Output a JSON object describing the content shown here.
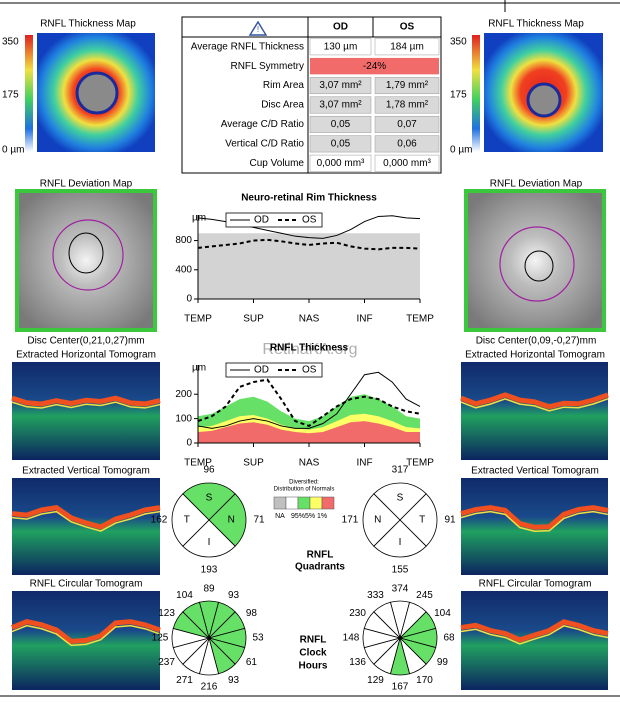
{
  "thickness_maps": [
    {
      "title": "RNFL Thickness Map",
      "scale": [
        "350",
        "175",
        "0 µm"
      ]
    },
    {
      "title": "RNFL Thickness Map",
      "scale": [
        "350",
        "175",
        "0 µm"
      ]
    }
  ],
  "table": {
    "header": [
      "OD",
      "OS"
    ],
    "rows": [
      {
        "label": "Average RNFL Thickness",
        "od": "130 µm",
        "os": "184 µm",
        "color": "#ffffff"
      },
      {
        "label": "RNFL Symmetry",
        "value": "-24%",
        "color": "#f26b6b"
      },
      {
        "label": "Rim Area",
        "od": "3,07 mm²",
        "os": "1,79 mm²",
        "color": "#d9d9d9"
      },
      {
        "label": "Disc Area",
        "od": "3,07 mm²",
        "os": "1,78 mm²",
        "color": "#d9d9d9"
      },
      {
        "label": "Average C/D Ratio",
        "od": "0,05",
        "os": "0,07",
        "color": "#d9d9d9"
      },
      {
        "label": "Vertical C/D Ratio",
        "od": "0,05",
        "os": "0,06",
        "color": "#d9d9d9"
      },
      {
        "label": "Cup Volume",
        "od": "0,000 mm³",
        "os": "0,000 mm³",
        "color": "#ffffff"
      }
    ]
  },
  "deviation_maps": [
    {
      "title": "RNFL Deviation Map",
      "caption": "Disc Center(0,21,0,27)mm"
    },
    {
      "title": "RNFL Deviation Map",
      "caption": "Disc Center(0,09,-0,27)mm"
    }
  ],
  "tomograms": {
    "horizontal": [
      "Extracted Horizontal Tomogram",
      "Extracted Horizontal Tomogram"
    ],
    "vertical": [
      "Extracted Vertical Tomogram",
      "Extracted Vertical Tomogram"
    ],
    "circular": [
      "RNFL Circular Tomogram",
      "RNFL Circular Tomogram"
    ]
  },
  "watermark": "RetinaKA.org",
  "chart_data": [
    {
      "type": "line",
      "title": "Neuro-retinal Rim Thickness",
      "y_label": "µm",
      "x": [
        0,
        1,
        2,
        3,
        4,
        5,
        6,
        7,
        8,
        9,
        10,
        11,
        12,
        13,
        14,
        15,
        16
      ],
      "xlim": [
        0,
        16
      ],
      "xticks": [
        {
          "value": 0,
          "label": "TEMP"
        },
        {
          "value": 4,
          "label": "SUP"
        },
        {
          "value": 8,
          "label": "NAS"
        },
        {
          "value": 12,
          "label": "INF"
        },
        {
          "value": 16,
          "label": "TEMP"
        }
      ],
      "ylim": [
        0,
        1150
      ],
      "yticks": [
        0,
        400,
        800
      ],
      "shaded_range": [
        0,
        900
      ],
      "shaded_color": "#d3d3d3",
      "series": [
        {
          "name": "OD",
          "color": "#000000",
          "dashed": false,
          "values": [
            1110,
            1090,
            1060,
            1020,
            980,
            940,
            900,
            860,
            840,
            830,
            870,
            950,
            1060,
            1130,
            1140,
            1110,
            1100
          ]
        },
        {
          "name": "OS",
          "color": "#000000",
          "dashed": true,
          "values": [
            700,
            720,
            740,
            760,
            800,
            810,
            790,
            760,
            740,
            760,
            770,
            720,
            690,
            680,
            700,
            700,
            690
          ]
        }
      ]
    },
    {
      "type": "line",
      "title": "RNFL Thickness",
      "y_label": "µm",
      "x": [
        0,
        1,
        2,
        3,
        4,
        5,
        6,
        7,
        8,
        9,
        10,
        11,
        12,
        13,
        14,
        15,
        16
      ],
      "xlim": [
        0,
        16
      ],
      "xticks": [
        {
          "value": 0,
          "label": "TEMP"
        },
        {
          "value": 4,
          "label": "SUP"
        },
        {
          "value": 8,
          "label": "NAS"
        },
        {
          "value": 12,
          "label": "INF"
        },
        {
          "value": 16,
          "label": "TEMP"
        }
      ],
      "ylim": [
        0,
        320
      ],
      "yticks": [
        0,
        100,
        200
      ],
      "bands": [
        {
          "color": "#66e066",
          "values": [
            110,
            120,
            150,
            180,
            190,
            170,
            130,
            100,
            90,
            110,
            150,
            190,
            200,
            180,
            150,
            110,
            100
          ]
        },
        {
          "color": "#ffff66",
          "values": [
            65,
            70,
            90,
            110,
            115,
            100,
            75,
            60,
            55,
            65,
            90,
            115,
            120,
            110,
            90,
            65,
            60
          ]
        },
        {
          "color": "#f26b6b",
          "values": [
            45,
            50,
            65,
            80,
            85,
            75,
            55,
            45,
            40,
            45,
            65,
            85,
            90,
            80,
            65,
            45,
            45
          ]
        }
      ],
      "series": [
        {
          "name": "OD",
          "color": "#000000",
          "dashed": false,
          "values": [
            70,
            60,
            70,
            90,
            100,
            90,
            70,
            60,
            60,
            80,
            120,
            200,
            280,
            290,
            250,
            180,
            150
          ]
        },
        {
          "name": "OS",
          "color": "#000000",
          "dashed": true,
          "values": [
            90,
            110,
            150,
            230,
            250,
            260,
            180,
            90,
            70,
            110,
            150,
            180,
            190,
            180,
            150,
            130,
            120
          ]
        }
      ]
    }
  ],
  "normals_legend": {
    "title": [
      "Diversified:",
      "Distribution of Normals"
    ],
    "colors": [
      "#c0c0c0",
      "#ffffff",
      "#66e066",
      "#ffff66",
      "#f26b6b"
    ],
    "labels": [
      "NA",
      "95%",
      "5%",
      "1%"
    ]
  },
  "quadrants": {
    "title": [
      "RNFL",
      "Quadrants"
    ],
    "eyes": [
      {
        "segments": [
          {
            "label": "S",
            "value": 96,
            "color": "#66e066"
          },
          {
            "label": "N",
            "value": 71,
            "color": "#66e066"
          },
          {
            "label": "I",
            "value": 193,
            "color": "#ffffff"
          },
          {
            "label": "T",
            "value": 162,
            "color": "#ffffff"
          }
        ]
      },
      {
        "segments": [
          {
            "label": "S",
            "value": 317,
            "color": "#ffffff"
          },
          {
            "label": "T",
            "value": 91,
            "color": "#ffffff"
          },
          {
            "label": "I",
            "value": 155,
            "color": "#ffffff"
          },
          {
            "label": "N",
            "value": 171,
            "color": "#ffffff"
          }
        ]
      }
    ]
  },
  "clock_hours": {
    "title": [
      "RNFL",
      "Clock",
      "Hours"
    ],
    "eyes": [
      {
        "values": [
          89,
          93,
          98,
          53,
          61,
          93,
          216,
          271,
          237,
          125,
          123,
          104
        ],
        "colors": [
          "#66e066",
          "#66e066",
          "#66e066",
          "#66e066",
          "#66e066",
          "#66e066",
          "#ffffff",
          "#ffffff",
          "#ffffff",
          "#ffffff",
          "#66e066",
          "#66e066"
        ]
      },
      {
        "values": [
          374,
          245,
          104,
          68,
          99,
          170,
          167,
          129,
          136,
          148,
          230,
          333
        ],
        "colors": [
          "#ffffff",
          "#ffffff",
          "#66e066",
          "#66e066",
          "#66e066",
          "#ffffff",
          "#66e066",
          "#ffffff",
          "#ffffff",
          "#ffffff",
          "#ffffff",
          "#ffffff"
        ]
      }
    ]
  }
}
